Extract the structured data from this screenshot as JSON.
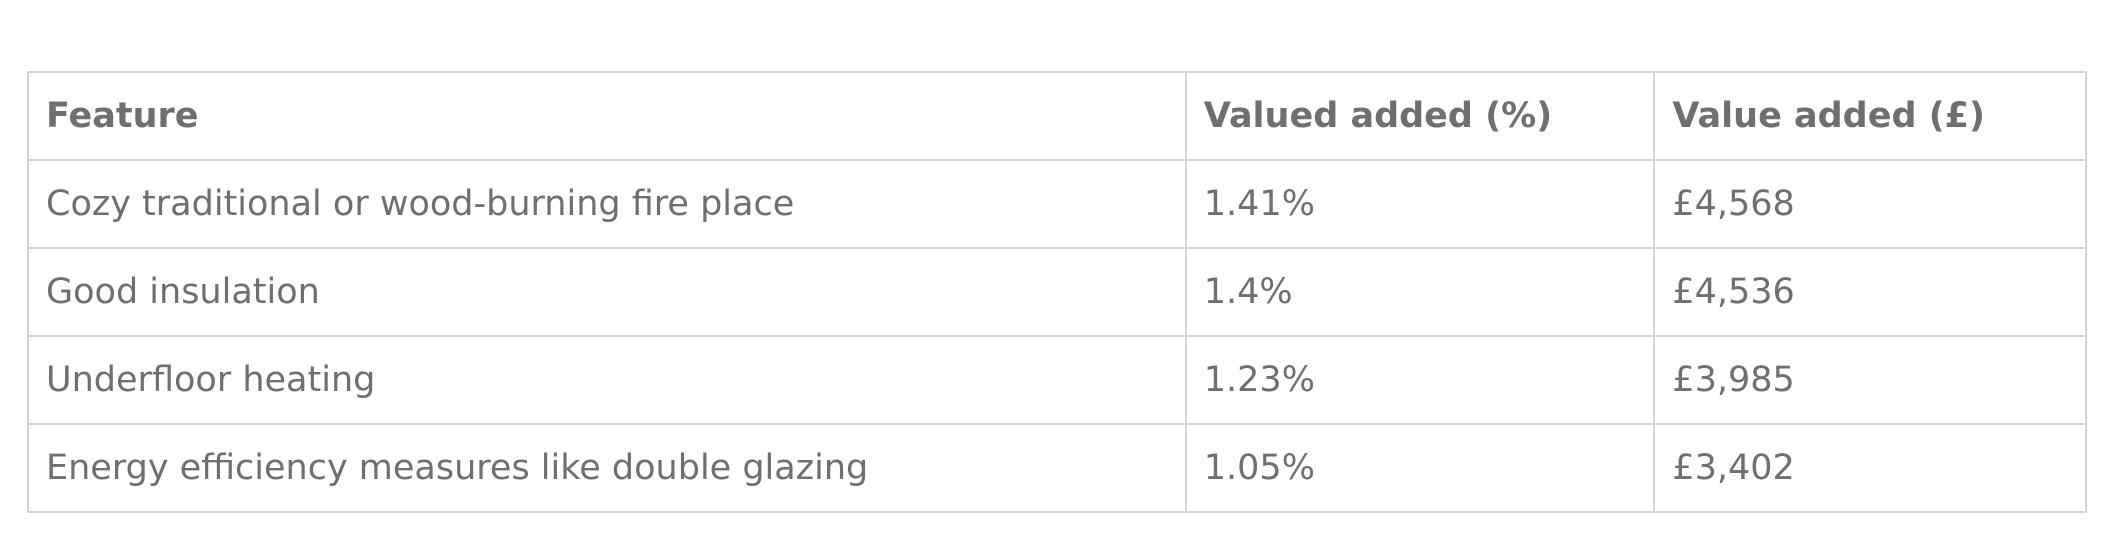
{
  "table": {
    "headers": [
      "Feature",
      "Valued added (%)",
      "Value added (£)"
    ],
    "rows": [
      [
        "Cozy traditional or wood-burning fire place",
        "1.41%",
        "£4,568"
      ],
      [
        "Good insulation",
        "1.4%",
        "£4,536"
      ],
      [
        "Underfloor heating",
        "1.23%",
        "£3,985"
      ],
      [
        "Energy efficiency measures like double glazing",
        "1.05%",
        "£3,402"
      ]
    ]
  }
}
